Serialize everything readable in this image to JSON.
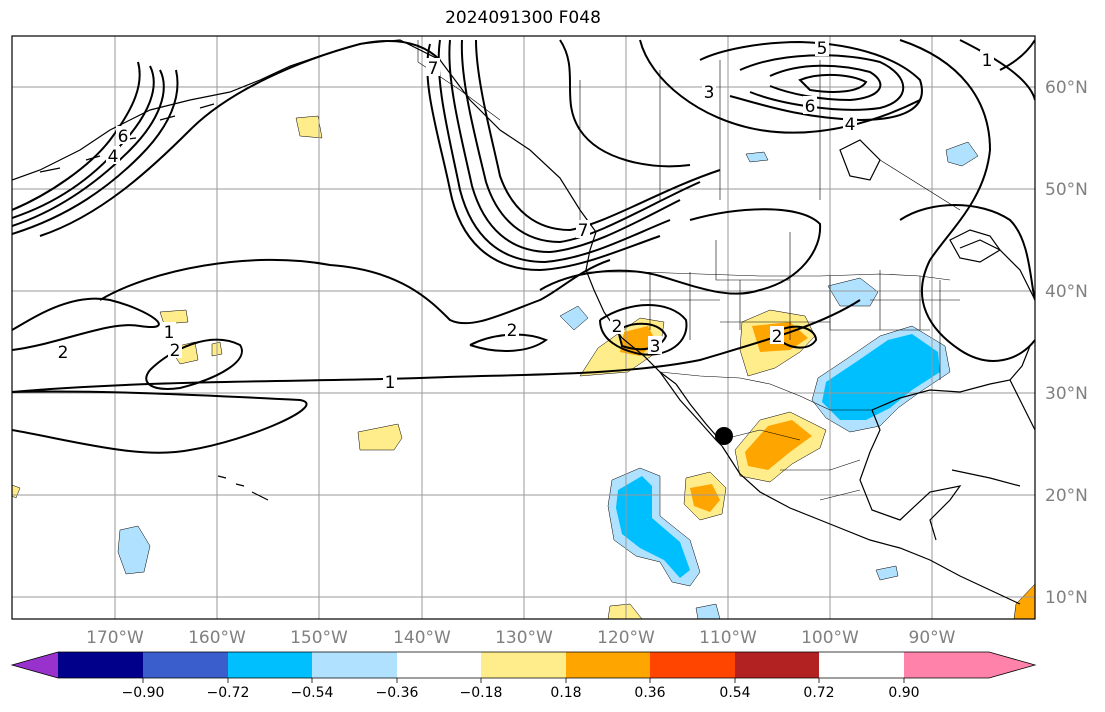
{
  "title": "2024091300 F048",
  "map": {
    "lon_labels": [
      "170°W",
      "160°W",
      "150°W",
      "140°W",
      "130°W",
      "120°W",
      "110°W",
      "100°W",
      "90°W"
    ],
    "lat_labels": [
      "60°N",
      "50°N",
      "40°N",
      "30°N",
      "20°N",
      "10°N"
    ],
    "contour_labels": [
      "1",
      "1",
      "2",
      "2",
      "2",
      "2",
      "3",
      "3",
      "4",
      "4",
      "5",
      "6",
      "6",
      "7",
      "7",
      "1",
      "2"
    ],
    "marker": "storm-center-marker"
  },
  "colorbar": {
    "ticks": [
      "−0.90",
      "−0.72",
      "−0.54",
      "−0.36",
      "−0.18",
      "0.18",
      "0.36",
      "0.54",
      "0.72",
      "0.90"
    ],
    "colors": [
      "#9932cc",
      "#00008b",
      "#3a5fcd",
      "#00bfff",
      "#b0e2ff",
      "#ffffff",
      "#ffec8b",
      "#ffa500",
      "#ff4500",
      "#b22222",
      "#ff82ab"
    ]
  }
}
